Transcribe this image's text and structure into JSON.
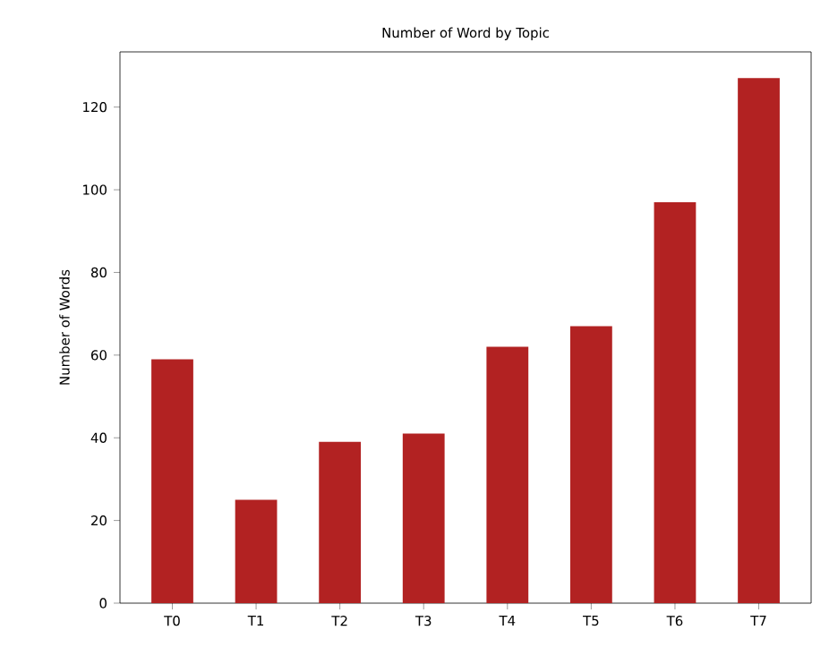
{
  "chart_data": {
    "type": "bar",
    "title": "Number of Word by  Topic",
    "ylabel": "Number of Words",
    "categories": [
      "T0",
      "T1",
      "T2",
      "T3",
      "T4",
      "T5",
      "T6",
      "T7"
    ],
    "values": [
      59,
      25,
      39,
      41,
      62,
      67,
      97,
      127
    ],
    "color": "#b22222",
    "ylim": [
      0,
      133.35
    ],
    "yticks": [
      0,
      20,
      40,
      60,
      80,
      100,
      120
    ]
  }
}
